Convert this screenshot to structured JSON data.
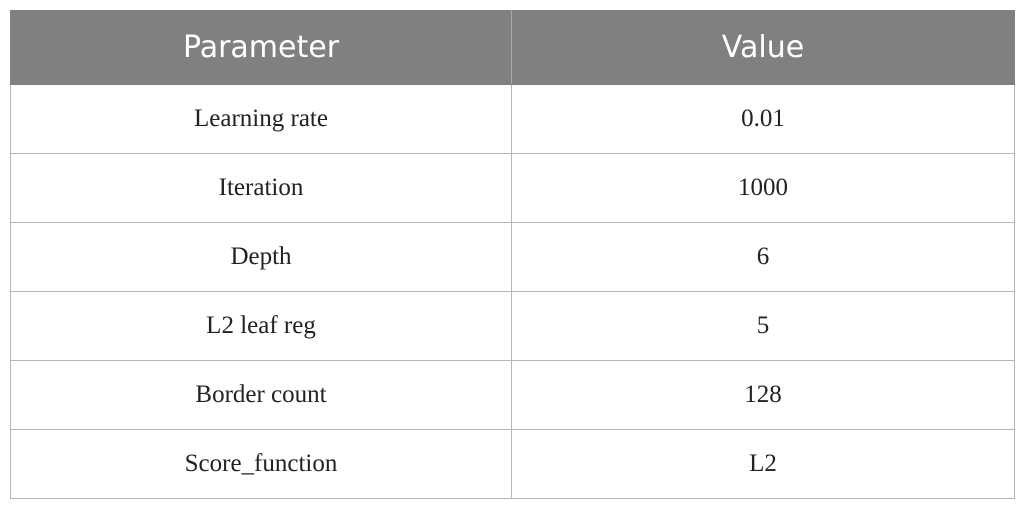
{
  "table": {
    "headers": {
      "parameter": "Parameter",
      "value": "Value"
    },
    "rows": [
      {
        "parameter": "Learning rate",
        "value": "0.01"
      },
      {
        "parameter": "Iteration",
        "value": "1000"
      },
      {
        "parameter": "Depth",
        "value": "6"
      },
      {
        "parameter": "L2 leaf reg",
        "value": "5"
      },
      {
        "parameter": "Border count",
        "value": "128"
      },
      {
        "parameter": "Score_function",
        "value": "L2"
      }
    ]
  },
  "colors": {
    "header_background": "#808080",
    "header_text": "#ffffff",
    "grid_line": "#b5b5b5"
  }
}
